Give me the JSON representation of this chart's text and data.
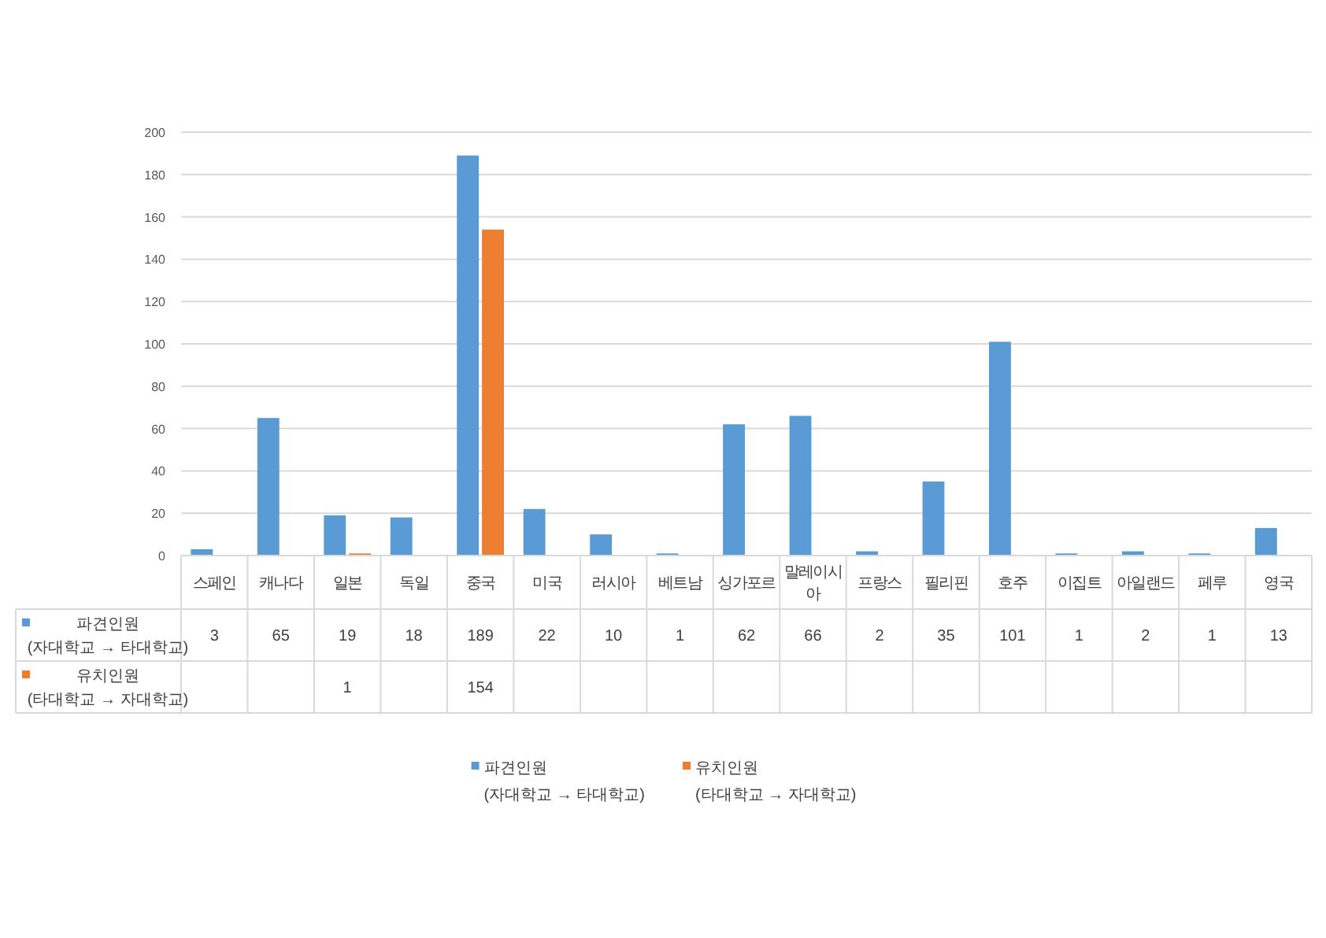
{
  "chart_data": {
    "type": "bar",
    "categories": [
      "스페인",
      "캐나다",
      "일본",
      "독일",
      "중국",
      "미국",
      "러시아",
      "베트남",
      "싱가포르",
      "말레이시아",
      "프랑스",
      "필리핀",
      "호주",
      "이집트",
      "아일랜드",
      "페루",
      "영국"
    ],
    "series": [
      {
        "name": "파견인원\n(자대학교 → 타대학교)",
        "color": "#5b9bd5",
        "values": [
          3,
          65,
          19,
          18,
          189,
          22,
          10,
          1,
          62,
          66,
          2,
          35,
          101,
          1,
          2,
          1,
          13
        ]
      },
      {
        "name": "유치인원\n(타대학교 → 자대학교)",
        "color": "#ed7d31",
        "values": [
          null,
          null,
          1,
          null,
          154,
          null,
          null,
          null,
          null,
          null,
          null,
          null,
          null,
          null,
          null,
          null,
          null
        ]
      }
    ],
    "ylim": [
      0,
      200
    ],
    "yticks": [
      0,
      20,
      40,
      60,
      80,
      100,
      120,
      140,
      160,
      180,
      200
    ],
    "grid": "y",
    "data_labels": true,
    "legend": "bottom"
  }
}
